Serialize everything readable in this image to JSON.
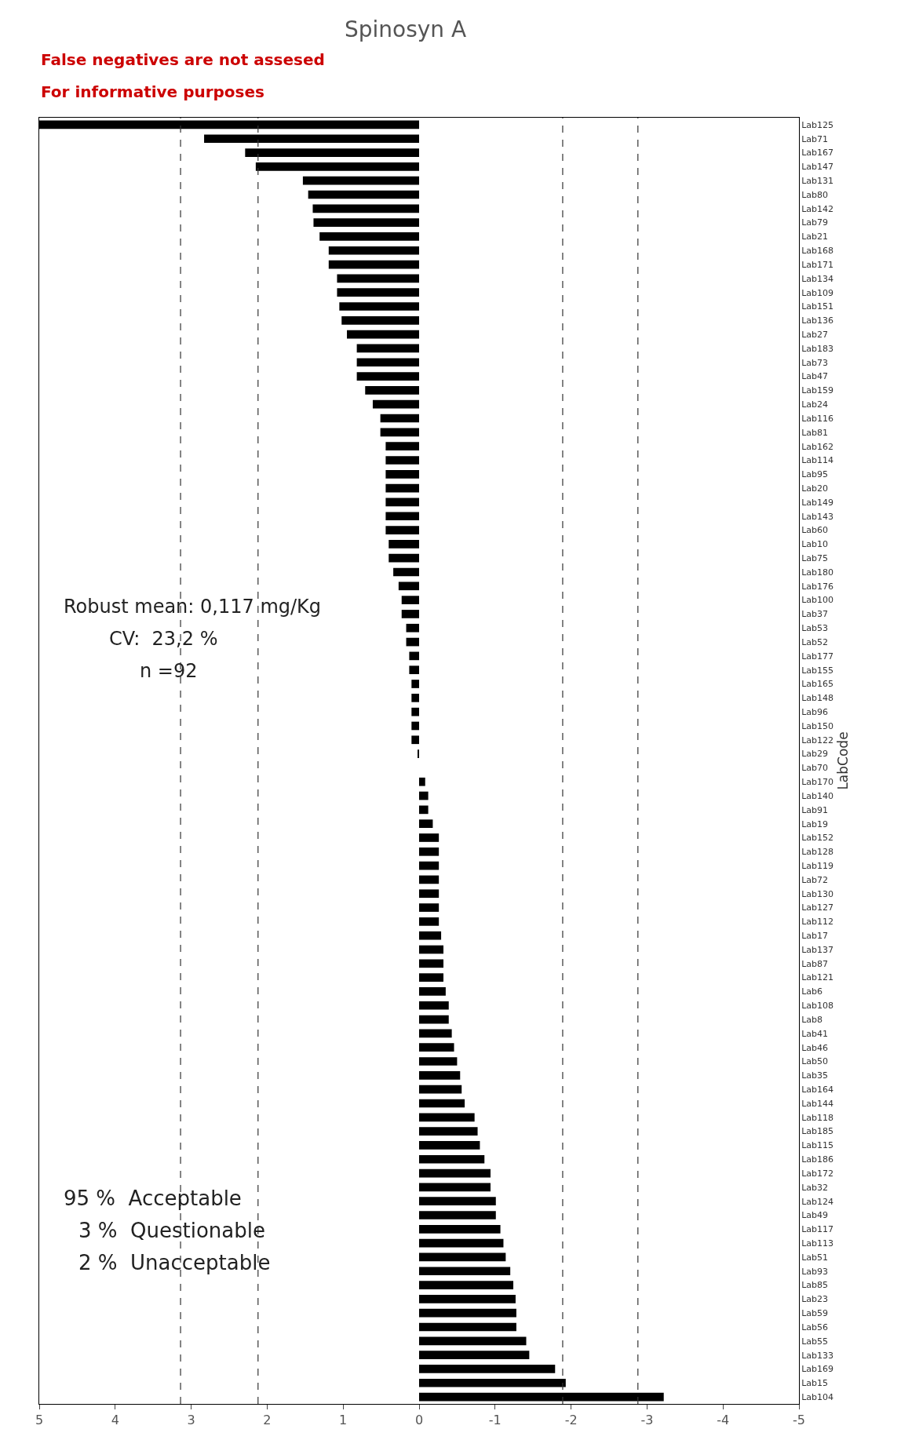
{
  "chart_data": {
    "type": "bar",
    "orientation": "horizontal",
    "title": "Spinosyn A",
    "ylabel": "LabCode",
    "categories": [
      "Lab125",
      "Lab71",
      "Lab167",
      "Lab147",
      "Lab131",
      "Lab80",
      "Lab142",
      "Lab79",
      "Lab21",
      "Lab168",
      "Lab171",
      "Lab134",
      "Lab109",
      "Lab151",
      "Lab136",
      "Lab27",
      "Lab183",
      "Lab73",
      "Lab47",
      "Lab159",
      "Lab24",
      "Lab116",
      "Lab81",
      "Lab162",
      "Lab114",
      "Lab95",
      "Lab20",
      "Lab149",
      "Lab143",
      "Lab60",
      "Lab10",
      "Lab75",
      "Lab180",
      "Lab176",
      "Lab100",
      "Lab37",
      "Lab53",
      "Lab52",
      "Lab177",
      "Lab155",
      "Lab165",
      "Lab148",
      "Lab96",
      "Lab150",
      "Lab122",
      "Lab29",
      "Lab70",
      "Lab170",
      "Lab140",
      "Lab91",
      "Lab19",
      "Lab152",
      "Lab128",
      "Lab119",
      "Lab72",
      "Lab130",
      "Lab127",
      "Lab112",
      "Lab17",
      "Lab137",
      "Lab87",
      "Lab121",
      "Lab6",
      "Lab108",
      "Lab8",
      "Lab41",
      "Lab46",
      "Lab50",
      "Lab35",
      "Lab164",
      "Lab144",
      "Lab118",
      "Lab185",
      "Lab115",
      "Lab186",
      "Lab172",
      "Lab32",
      "Lab124",
      "Lab49",
      "Lab117",
      "Lab113",
      "Lab51",
      "Lab93",
      "Lab85",
      "Lab23",
      "Lab59",
      "Lab56",
      "Lab55",
      "Lab133",
      "Lab169",
      "Lab15",
      "Lab104"
    ],
    "values": [
      5.0,
      2.83,
      2.29,
      2.15,
      1.53,
      1.46,
      1.4,
      1.39,
      1.31,
      1.19,
      1.19,
      1.08,
      1.08,
      1.05,
      1.02,
      0.95,
      0.82,
      0.82,
      0.82,
      0.71,
      0.61,
      0.51,
      0.51,
      0.44,
      0.44,
      0.44,
      0.44,
      0.44,
      0.44,
      0.44,
      0.4,
      0.4,
      0.34,
      0.27,
      0.23,
      0.23,
      0.17,
      0.17,
      0.13,
      0.13,
      0.1,
      0.1,
      0.1,
      0.1,
      0.1,
      0.02,
      0.0,
      -0.08,
      -0.12,
      -0.12,
      -0.18,
      -0.26,
      -0.26,
      -0.26,
      -0.26,
      -0.26,
      -0.26,
      -0.26,
      -0.29,
      -0.32,
      -0.32,
      -0.32,
      -0.35,
      -0.39,
      -0.39,
      -0.43,
      -0.46,
      -0.5,
      -0.54,
      -0.56,
      -0.6,
      -0.73,
      -0.77,
      -0.8,
      -0.86,
      -0.94,
      -0.94,
      -1.01,
      -1.01,
      -1.07,
      -1.11,
      -1.14,
      -1.2,
      -1.24,
      -1.27,
      -1.28,
      -1.28,
      -1.41,
      -1.45,
      -1.79,
      -1.93,
      -3.22
    ],
    "color": "#000000",
    "xlim": [
      5,
      -5
    ],
    "xticks": [
      5,
      4,
      3,
      2,
      1,
      0,
      -1,
      -2,
      -3,
      -4,
      -5
    ],
    "grid": false,
    "ref_lines": [
      {
        "axis": "x",
        "value": 3.14,
        "line_style": "dashed"
      },
      {
        "axis": "x",
        "value": 2.12,
        "line_style": "dashed"
      },
      {
        "axis": "x",
        "value": -1.89,
        "line_style": "dashed"
      },
      {
        "axis": "x",
        "value": -2.88,
        "line_style": "dashed"
      }
    ],
    "annotations": [
      "False negatives are not assesed",
      "For informative purposes",
      "Robust mean: 0,117 mg/Kg",
      "CV:  23,2 %",
      "n =92",
      "95 %  Acceptable",
      "3 %  Questionable",
      "2 %  Unacceptable"
    ]
  }
}
